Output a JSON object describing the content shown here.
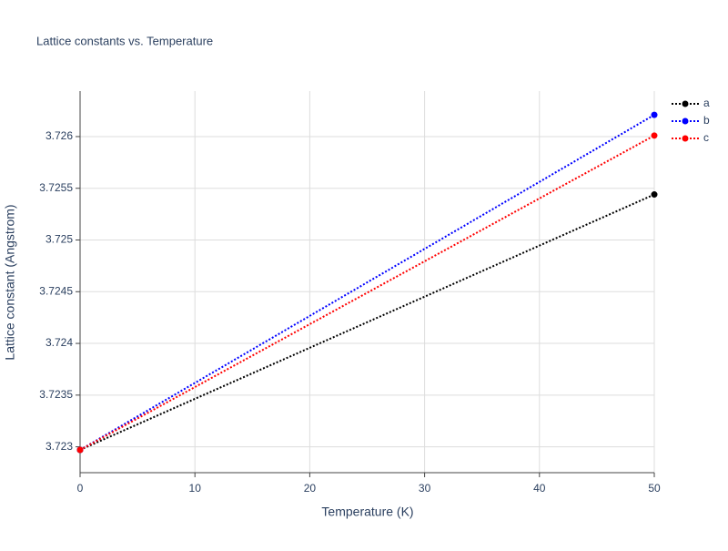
{
  "chart_data": {
    "type": "line",
    "title": "Lattice constants vs. Temperature",
    "x_label": "Temperature (K)",
    "y_label": "Lattice constant (Angstrom)",
    "x": [
      0,
      50
    ],
    "series": [
      {
        "name": "a",
        "color": "#000000",
        "values": [
          3.72297,
          3.72544
        ]
      },
      {
        "name": "b",
        "color": "#0000ff",
        "values": [
          3.72297,
          3.72621
        ]
      },
      {
        "name": "c",
        "color": "#ff0000",
        "values": [
          3.72297,
          3.72601
        ]
      }
    ],
    "xlim": [
      0,
      50
    ],
    "xticks": [
      0,
      10,
      20,
      30,
      40,
      50
    ],
    "ylim": [
      3.72275,
      3.72644
    ],
    "yticks": [
      3.723,
      3.7235,
      3.724,
      3.7245,
      3.725,
      3.7255,
      3.726
    ],
    "grid": true,
    "legend": "top-right"
  }
}
